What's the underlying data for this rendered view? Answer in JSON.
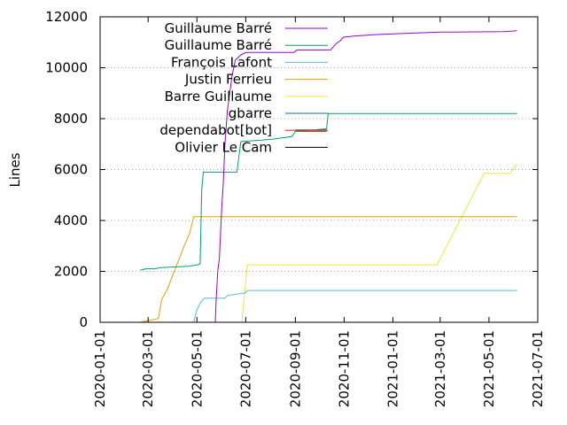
{
  "chart_data": {
    "type": "line",
    "title": "",
    "xlabel": "",
    "ylabel": "Lines",
    "x_type": "date",
    "xlim": [
      "2020-01-01",
      "2021-07-01"
    ],
    "ylim": [
      0,
      12000
    ],
    "xticks": [
      "2020-01-01",
      "2020-03-01",
      "2020-05-01",
      "2020-07-01",
      "2020-09-01",
      "2020-11-01",
      "2021-01-01",
      "2021-03-01",
      "2021-05-01",
      "2021-07-01"
    ],
    "yticks": [
      0,
      2000,
      4000,
      6000,
      8000,
      10000,
      12000
    ],
    "grid": {
      "y": true,
      "x": false,
      "style": "dotted"
    },
    "legend": "top-right",
    "series": [
      {
        "name": "Guillaume Barré",
        "color": "#9400d3",
        "points": [
          [
            "2020-05-24",
            0
          ],
          [
            "2020-05-25",
            900
          ],
          [
            "2020-05-27",
            2000
          ],
          [
            "2020-05-29",
            2500
          ],
          [
            "2020-06-01",
            4500
          ],
          [
            "2020-06-03",
            5500
          ],
          [
            "2020-06-05",
            7000
          ],
          [
            "2020-06-08",
            8300
          ],
          [
            "2020-06-11",
            9000
          ],
          [
            "2020-06-14",
            9700
          ],
          [
            "2020-06-18",
            10300
          ],
          [
            "2020-06-25",
            10500
          ],
          [
            "2020-07-01",
            10600
          ],
          [
            "2020-08-30",
            10600
          ],
          [
            "2020-09-03",
            10700
          ],
          [
            "2020-10-15",
            10700
          ],
          [
            "2020-10-22",
            10950
          ],
          [
            "2020-10-27",
            11050
          ],
          [
            "2020-10-31",
            11200
          ],
          [
            "2020-11-15",
            11250
          ],
          [
            "2020-12-10",
            11300
          ],
          [
            "2021-01-15",
            11350
          ],
          [
            "2021-03-01",
            11400
          ],
          [
            "2021-05-20",
            11420
          ],
          [
            "2021-06-05",
            11450
          ]
        ]
      },
      {
        "name": "Guillaume Barré",
        "color": "#009e73",
        "points": [
          [
            "2020-02-20",
            2050
          ],
          [
            "2020-02-27",
            2100
          ],
          [
            "2020-03-10",
            2100
          ],
          [
            "2020-03-16",
            2150
          ],
          [
            "2020-04-20",
            2200
          ],
          [
            "2020-05-01",
            2250
          ],
          [
            "2020-05-05",
            2300
          ],
          [
            "2020-05-07",
            5200
          ],
          [
            "2020-05-09",
            5900
          ],
          [
            "2020-06-12",
            5900
          ],
          [
            "2020-06-20",
            5900
          ],
          [
            "2020-06-25",
            7100
          ],
          [
            "2020-07-20",
            7150
          ],
          [
            "2020-08-05",
            7200
          ],
          [
            "2020-08-28",
            7300
          ],
          [
            "2020-09-01",
            7500
          ],
          [
            "2020-10-10",
            7600
          ],
          [
            "2020-10-12",
            8200
          ],
          [
            "2021-06-05",
            8200
          ]
        ]
      },
      {
        "name": "François Lafont",
        "color": "#56b4e9",
        "points": [
          [
            "2020-04-27",
            0
          ],
          [
            "2020-05-01",
            500
          ],
          [
            "2020-05-06",
            800
          ],
          [
            "2020-05-10",
            950
          ],
          [
            "2020-06-05",
            950
          ],
          [
            "2020-06-08",
            1050
          ],
          [
            "2020-06-30",
            1150
          ],
          [
            "2020-07-03",
            1250
          ],
          [
            "2020-10-01",
            1250
          ],
          [
            "2021-06-05",
            1250
          ]
        ]
      },
      {
        "name": "Justin Ferrieu",
        "color": "#e69f00",
        "points": [
          [
            "2020-02-20",
            0
          ],
          [
            "2020-03-14",
            150
          ],
          [
            "2020-03-18",
            900
          ],
          [
            "2020-03-25",
            1300
          ],
          [
            "2020-04-15",
            3000
          ],
          [
            "2020-04-22",
            3500
          ],
          [
            "2020-04-27",
            4150
          ],
          [
            "2021-06-05",
            4150
          ]
        ]
      },
      {
        "name": "Barre Guillaume",
        "color": "#f0e442",
        "points": [
          [
            "2020-06-26",
            0
          ],
          [
            "2020-07-03",
            2250
          ],
          [
            "2021-02-25",
            2250
          ],
          [
            "2021-04-25",
            5850
          ],
          [
            "2021-05-27",
            5850
          ],
          [
            "2021-06-05",
            6200
          ]
        ]
      },
      {
        "name": "gbarre",
        "color": "#0072b2",
        "points": [
          [
            "2020-09-01",
            7550
          ],
          [
            "2020-10-10",
            7550
          ]
        ]
      },
      {
        "name": "dependabot[bot]",
        "color": "#e51e10",
        "points": [
          [
            "2020-09-01",
            7500
          ],
          [
            "2020-10-10",
            7500
          ]
        ]
      },
      {
        "name": "Olivier Le Cam",
        "color": "#000000",
        "points": [
          [
            "2020-09-01",
            7550
          ],
          [
            "2020-10-10",
            7550
          ]
        ]
      }
    ]
  }
}
